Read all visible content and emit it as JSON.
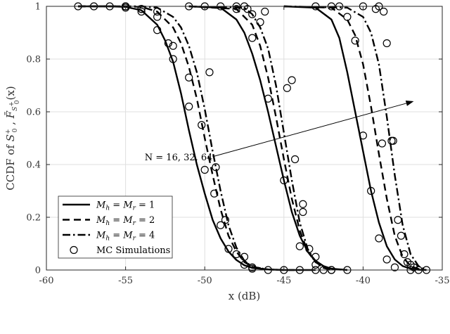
{
  "chart_data": {
    "type": "line",
    "xlabel": "x (dB)",
    "ylabel_prefix": "CCDF of ",
    "ylabel_a": "S",
    "ylabel_a_sup": "+",
    "ylabel_a_sub": "0",
    "ylabel_sep": " , ",
    "ylabel_b": "F̄",
    "ylabel_b_sub": "S",
    "ylabel_b_sub_sup": "+",
    "ylabel_b_sub_sub": "0",
    "ylabel_b_arg": "(x)",
    "xlim": [
      -60,
      -35
    ],
    "ylim": [
      0,
      1
    ],
    "xticks": [
      -60,
      -55,
      -50,
      -45,
      -40,
      -35
    ],
    "yticks": [
      0,
      0.2,
      0.4,
      0.6,
      0.8,
      1
    ],
    "xtick_labels": [
      "-60",
      "-55",
      "-50",
      "-45",
      "-40",
      "-35"
    ],
    "ytick_labels": [
      "0",
      "0.2",
      "0.4",
      "0.6",
      "0.8",
      "1"
    ],
    "grid": true,
    "legend_position": "bottom-left",
    "annotation": {
      "text": "N = 16, 32, 64",
      "arrow_from": [
        -49.5,
        0.43
      ],
      "arrow_to": [
        -36.8,
        0.64
      ]
    },
    "series": [
      {
        "name": "M_h = M_r = 1",
        "name_display": "M",
        "name_sub1": "h",
        "name_mid": " = M",
        "name_sub2": "r",
        "name_tail": " = 1",
        "style": "solid",
        "curves": [
          {
            "N": 16,
            "x": [
              -58,
              -56,
              -55,
              -54,
              -53,
              -52.5,
              -52,
              -51.5,
              -51,
              -50.5,
              -50,
              -49.5,
              -49,
              -48.5,
              -48,
              -47.5,
              -47,
              -46,
              -45,
              -44,
              -43
            ],
            "y": [
              1,
              1,
              0.998,
              0.985,
              0.93,
              0.87,
              0.79,
              0.67,
              0.53,
              0.4,
              0.29,
              0.19,
              0.12,
              0.07,
              0.038,
              0.018,
              0.008,
              0.002,
              0,
              0,
              0
            ]
          },
          {
            "N": 32,
            "x": [
              -51,
              -49,
              -48,
              -47.5,
              -47,
              -46.5,
              -46,
              -45.5,
              -45,
              -44.5,
              -44,
              -43.5,
              -43,
              -42.5,
              -42,
              -41
            ],
            "y": [
              1,
              0.995,
              0.95,
              0.9,
              0.82,
              0.72,
              0.6,
              0.47,
              0.34,
              0.22,
              0.13,
              0.07,
              0.035,
              0.015,
              0.005,
              0
            ]
          },
          {
            "N": 64,
            "x": [
              -45,
              -43,
              -42,
              -41.5,
              -41,
              -40.5,
              -40,
              -39.5,
              -39,
              -38.5,
              -38,
              -37.5,
              -37,
              -36.5,
              -36
            ],
            "y": [
              1,
              0.995,
              0.95,
              0.88,
              0.75,
              0.6,
              0.45,
              0.3,
              0.18,
              0.09,
              0.04,
              0.015,
              0.005,
              0.001,
              0
            ]
          }
        ]
      },
      {
        "name": "M_h = M_r = 2",
        "name_display": "M",
        "name_sub1": "h",
        "name_mid": " = M",
        "name_sub2": "r",
        "name_tail": " = 2",
        "style": "dashed",
        "curves": [
          {
            "N": 16,
            "x": [
              -58,
              -55,
              -54,
              -53,
              -52,
              -51.5,
              -51,
              -50.5,
              -50,
              -49.5,
              -49,
              -48.5,
              -48,
              -47.5,
              -47,
              -46,
              -45,
              -44
            ],
            "y": [
              1,
              1,
              0.998,
              0.98,
              0.92,
              0.86,
              0.77,
              0.65,
              0.5,
              0.36,
              0.23,
              0.13,
              0.07,
              0.03,
              0.012,
              0.002,
              0,
              0
            ]
          },
          {
            "N": 32,
            "x": [
              -51,
              -48,
              -47,
              -46.5,
              -46,
              -45.5,
              -45,
              -44.5,
              -44,
              -43.5,
              -43,
              -42.5,
              -42,
              -41
            ],
            "y": [
              1,
              0.99,
              0.93,
              0.85,
              0.73,
              0.58,
              0.42,
              0.27,
              0.15,
              0.07,
              0.03,
              0.01,
              0.003,
              0
            ]
          },
          {
            "N": 64,
            "x": [
              -45,
              -42,
              -41,
              -40.5,
              -40,
              -39.5,
              -39,
              -38.5,
              -38,
              -37.5,
              -37,
              -36.5,
              -36
            ],
            "y": [
              1,
              0.995,
              0.95,
              0.89,
              0.78,
              0.62,
              0.44,
              0.27,
              0.13,
              0.05,
              0.015,
              0.004,
              0
            ]
          }
        ]
      },
      {
        "name": "M_h = M_r = 4",
        "name_display": "M",
        "name_sub1": "h",
        "name_mid": " = M",
        "name_sub2": "r",
        "name_tail": " = 4",
        "style": "dashdot",
        "curves": [
          {
            "N": 16,
            "x": [
              -58,
              -54,
              -53,
              -52,
              -51.5,
              -51,
              -50.5,
              -50,
              -49.5,
              -49,
              -48.5,
              -48,
              -47.5,
              -47,
              -46,
              -45
            ],
            "y": [
              1,
              1,
              0.995,
              0.96,
              0.92,
              0.85,
              0.75,
              0.61,
              0.45,
              0.3,
              0.17,
              0.085,
              0.035,
              0.012,
              0.002,
              0
            ]
          },
          {
            "N": 32,
            "x": [
              -51,
              -47.5,
              -47,
              -46.5,
              -46,
              -45.5,
              -45,
              -44.5,
              -44,
              -43.5,
              -43,
              -42.5,
              -42
            ],
            "y": [
              1,
              0.995,
              0.97,
              0.92,
              0.84,
              0.7,
              0.52,
              0.34,
              0.18,
              0.08,
              0.03,
              0.008,
              0
            ]
          },
          {
            "N": 64,
            "x": [
              -45,
              -41,
              -40,
              -39.5,
              -39,
              -38.5,
              -38,
              -37.5,
              -37,
              -36.5,
              -36
            ],
            "y": [
              1,
              0.995,
              0.96,
              0.9,
              0.78,
              0.58,
              0.36,
              0.17,
              0.06,
              0.015,
              0
            ]
          }
        ]
      },
      {
        "name": "MC Simulations",
        "style": "markers",
        "points": [
          [
            -58,
            1
          ],
          [
            -57,
            1
          ],
          [
            -56,
            1
          ],
          [
            -55,
            1
          ],
          [
            -54,
            0.98
          ],
          [
            -53,
            0.91
          ],
          [
            -52,
            0.8
          ],
          [
            -51,
            0.62
          ],
          [
            -50,
            0.38
          ],
          [
            -49,
            0.17
          ],
          [
            -48,
            0.06
          ],
          [
            -47,
            0.01
          ],
          [
            -46,
            0
          ],
          [
            -45,
            0
          ],
          [
            -44,
            0
          ],
          [
            -43,
            0
          ],
          [
            -55,
            0.995
          ],
          [
            -54,
            0.99
          ],
          [
            -53,
            0.96
          ],
          [
            -52,
            0.85
          ],
          [
            -51,
            0.73
          ],
          [
            -50.2,
            0.55
          ],
          [
            -49.4,
            0.29
          ],
          [
            -48.5,
            0.08
          ],
          [
            -47.5,
            0.02
          ],
          [
            -47,
            0.005
          ],
          [
            -55,
            1
          ],
          [
            -54,
            0.99
          ],
          [
            -53,
            0.98
          ],
          [
            -52.3,
            0.86
          ],
          [
            -49.7,
            0.75
          ],
          [
            -49.3,
            0.39
          ],
          [
            -48.7,
            0.19
          ],
          [
            -47.5,
            0.05
          ],
          [
            -51,
            1
          ],
          [
            -50,
            1
          ],
          [
            -49,
            1
          ],
          [
            -48,
            0.99
          ],
          [
            -47,
            0.88
          ],
          [
            -46,
            0.65
          ],
          [
            -45,
            0.34
          ],
          [
            -44,
            0.09
          ],
          [
            -43,
            0.02
          ],
          [
            -42,
            0
          ],
          [
            -41,
            0
          ],
          [
            -47.5,
            1
          ],
          [
            -47,
            0.97
          ],
          [
            -46.5,
            0.94
          ],
          [
            -44.8,
            0.69
          ],
          [
            -44.3,
            0.42
          ],
          [
            -43.8,
            0.25
          ],
          [
            -43.4,
            0.08
          ],
          [
            -42.5,
            0
          ],
          [
            -42,
            0
          ],
          [
            -48,
            1
          ],
          [
            -47.3,
            0.99
          ],
          [
            -46.2,
            0.98
          ],
          [
            -44.5,
            0.72
          ],
          [
            -43.8,
            0.22
          ],
          [
            -43,
            0.05
          ],
          [
            -43,
            1
          ],
          [
            -42,
            1
          ],
          [
            -41.5,
            1
          ],
          [
            -41,
            0.96
          ],
          [
            -40.5,
            0.87
          ],
          [
            -40,
            0.51
          ],
          [
            -39.5,
            0.3
          ],
          [
            -39,
            0.12
          ],
          [
            -38.5,
            0.04
          ],
          [
            -38,
            0.01
          ],
          [
            -37,
            0
          ],
          [
            -36,
            0
          ],
          [
            -39,
            1
          ],
          [
            -38.7,
            0.98
          ],
          [
            -38.8,
            0.48
          ],
          [
            -38.1,
            0.49
          ],
          [
            -37.8,
            0.19
          ],
          [
            -37.4,
            0.06
          ],
          [
            -37,
            0.02
          ],
          [
            -36.5,
            0
          ],
          [
            -40,
            1
          ],
          [
            -39.2,
            0.99
          ],
          [
            -38.5,
            0.86
          ],
          [
            -38.2,
            0.49
          ],
          [
            -37.6,
            0.13
          ],
          [
            -37.2,
            0.03
          ],
          [
            -36.8,
            0.01
          ]
        ]
      }
    ]
  }
}
